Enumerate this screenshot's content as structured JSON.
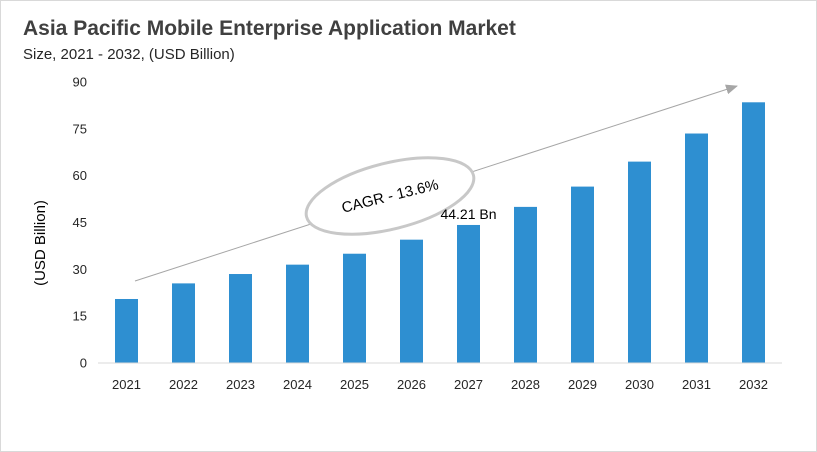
{
  "chart_data": {
    "type": "bar",
    "title": "Asia Pacific Mobile Enterprise Application Market",
    "subtitle": "Size, 2021 - 2032, (USD Billion)",
    "ylabel": "(USD Billion)",
    "xlabel": "",
    "categories": [
      "2021",
      "2022",
      "2023",
      "2024",
      "2025",
      "2026",
      "2027",
      "2028",
      "2029",
      "2030",
      "2031",
      "2032"
    ],
    "values": [
      20.5,
      25.5,
      28.5,
      31.5,
      35.0,
      39.5,
      44.21,
      50.0,
      56.5,
      64.5,
      73.5,
      83.5
    ],
    "ylim": [
      0,
      90
    ],
    "yticks": [
      "0",
      "15",
      "30",
      "45",
      "60",
      "75",
      "90"
    ],
    "grid": false,
    "bar_color": "#2e8fd1",
    "annotations": {
      "data_label": {
        "category": "2027",
        "text": "44.21 Bn"
      },
      "cagr": "CAGR - 13.6%"
    }
  }
}
